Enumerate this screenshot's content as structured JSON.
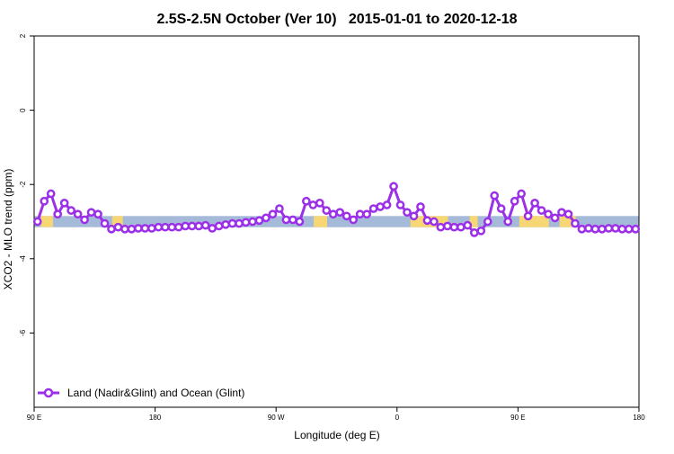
{
  "chart_data": {
    "type": "line",
    "title": "2.5S-2.5N October (Ver 10)   2015-01-01 to 2020-12-18",
    "xlabel": "Longitude (deg E)",
    "ylabel": "XCO2 - MLO trend (ppm)",
    "xlim": [
      90,
      540
    ],
    "ylim": [
      -8,
      2
    ],
    "x_ticks": [
      {
        "value": 90,
        "label": "90 E"
      },
      {
        "value": 180,
        "label": "180"
      },
      {
        "value": 270,
        "label": "90 W"
      },
      {
        "value": 360,
        "label": "0"
      },
      {
        "value": 450,
        "label": "90 E"
      },
      {
        "value": 540,
        "label": "180"
      }
    ],
    "y_ticks": [
      {
        "value": 2,
        "label": "2"
      },
      {
        "value": 0,
        "label": "0"
      },
      {
        "value": -2,
        "label": "-2"
      },
      {
        "value": -4,
        "label": "-4"
      },
      {
        "value": -6,
        "label": "-6"
      }
    ],
    "land_sea_band": {
      "y_range": [
        -3.15,
        -2.85
      ],
      "ocean_color": "#a5b9d9",
      "land_color": "#f7d774",
      "land_segments": [
        [
          95,
          104
        ],
        [
          148,
          156
        ],
        [
          298,
          308
        ],
        [
          370,
          398
        ],
        [
          414,
          420
        ],
        [
          451,
          473
        ],
        [
          481,
          493
        ]
      ]
    },
    "series": [
      {
        "name": "Land (Nadir&Glint) and Ocean (Glint)",
        "color": "#9b30e8",
        "x": [
          92.5,
          97.5,
          102.5,
          107.5,
          112.5,
          117.5,
          122.5,
          127.5,
          132.5,
          137.5,
          142.5,
          147.5,
          152.5,
          157.5,
          162.5,
          167.5,
          172.5,
          177.5,
          182.5,
          187.5,
          192.5,
          197.5,
          202.5,
          207.5,
          212.5,
          217.5,
          222.5,
          227.5,
          232.5,
          237.5,
          242.5,
          247.5,
          252.5,
          257.5,
          262.5,
          267.5,
          272.5,
          277.5,
          282.5,
          287.5,
          292.5,
          297.5,
          302.5,
          307.5,
          312.5,
          317.5,
          322.5,
          327.5,
          332.5,
          337.5,
          342.5,
          347.5,
          352.5,
          357.5,
          362.5,
          367.5,
          372.5,
          377.5,
          382.5,
          387.5,
          392.5,
          397.5,
          402.5,
          407.5,
          412.5,
          417.5,
          422.5,
          427.5,
          432.5,
          437.5,
          442.5,
          447.5,
          452.5,
          457.5,
          462.5,
          467.5,
          472.5,
          477.5,
          482.5,
          487.5,
          492.5,
          497.5,
          502.5,
          507.5,
          512.5,
          517.5,
          522.5,
          527.5,
          532.5,
          537.5
        ],
        "values": [
          -3.0,
          -2.45,
          -2.25,
          -2.8,
          -2.5,
          -2.7,
          -2.8,
          -2.95,
          -2.75,
          -2.8,
          -3.05,
          -3.2,
          -3.15,
          -3.2,
          -3.2,
          -3.18,
          -3.18,
          -3.18,
          -3.15,
          -3.15,
          -3.15,
          -3.15,
          -3.12,
          -3.12,
          -3.12,
          -3.1,
          -3.18,
          -3.12,
          -3.08,
          -3.05,
          -3.05,
          -3.02,
          -3.0,
          -2.97,
          -2.9,
          -2.8,
          -2.65,
          -2.95,
          -2.95,
          -3.0,
          -2.45,
          -2.55,
          -2.5,
          -2.7,
          -2.8,
          -2.75,
          -2.85,
          -2.95,
          -2.8,
          -2.8,
          -2.65,
          -2.6,
          -2.55,
          -2.05,
          -2.55,
          -2.75,
          -2.85,
          -2.6,
          -2.97,
          -3.0,
          -3.15,
          -3.12,
          -3.15,
          -3.15,
          -3.1,
          -3.3,
          -3.25,
          -3.0,
          -2.3,
          -2.65,
          -3.0,
          -2.45,
          -2.25,
          -2.85,
          -2.5,
          -2.7,
          -2.8,
          -2.9,
          -2.75,
          -2.8,
          -3.05,
          -3.2,
          -3.18,
          -3.2,
          -3.2,
          -3.18,
          -3.18,
          -3.2,
          -3.2,
          -3.2
        ]
      }
    ],
    "legend_position": "bottom-left",
    "grid": false
  }
}
